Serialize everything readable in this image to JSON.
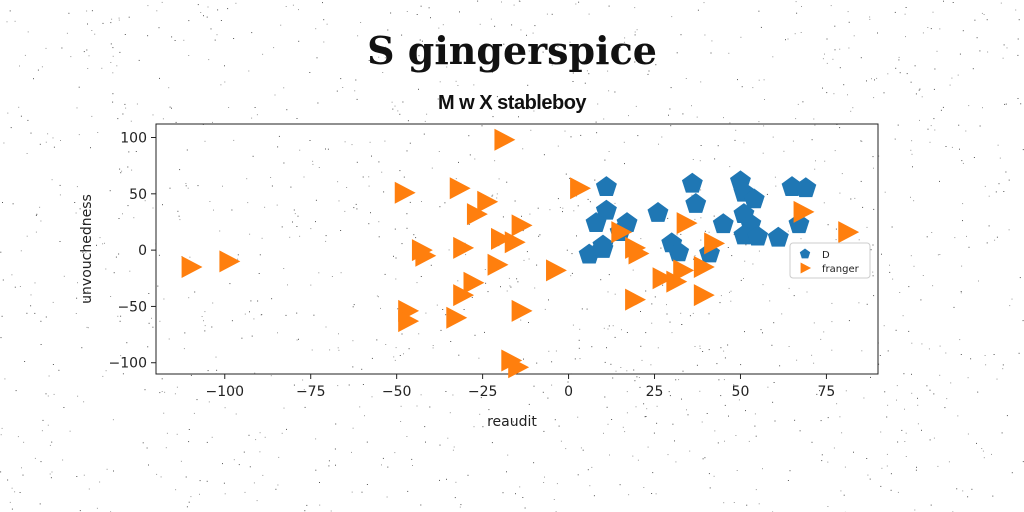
{
  "chart_data": {
    "type": "scatter",
    "title": "S gingerspice",
    "subtitle": "M w X stableboy",
    "xlabel": "reaudit",
    "ylabel": "unvouchedness",
    "xlim": [
      -120,
      90
    ],
    "ylim": [
      -110,
      112
    ],
    "xticks": [
      -100,
      -75,
      -50,
      -25,
      0,
      25,
      50,
      75
    ],
    "yticks": [
      -100,
      -50,
      0,
      50,
      100
    ],
    "grid": false,
    "legend_position": "right",
    "series": [
      {
        "name": "D",
        "marker": "pentagon",
        "color": "#1f77b4",
        "points": [
          [
            11,
            56
          ],
          [
            36,
            59
          ],
          [
            50,
            61
          ],
          [
            65,
            56
          ],
          [
            69,
            55
          ],
          [
            51,
            51
          ],
          [
            54,
            45
          ],
          [
            37,
            41
          ],
          [
            11,
            35
          ],
          [
            26,
            33
          ],
          [
            51,
            32
          ],
          [
            8,
            24
          ],
          [
            17,
            24
          ],
          [
            45,
            23
          ],
          [
            67,
            23
          ],
          [
            53,
            23
          ],
          [
            15,
            16
          ],
          [
            51,
            13
          ],
          [
            55,
            12
          ],
          [
            61,
            11
          ],
          [
            30,
            6
          ],
          [
            10,
            4
          ],
          [
            6,
            -4
          ],
          [
            10,
            1
          ],
          [
            32,
            -2
          ],
          [
            41,
            -3
          ]
        ]
      },
      {
        "name": "franger",
        "marker": "triangle-right",
        "color": "#ff7f0e",
        "points": [
          [
            -19,
            98
          ],
          [
            -48,
            51
          ],
          [
            -32,
            55
          ],
          [
            3,
            55
          ],
          [
            -24,
            43
          ],
          [
            -27,
            32
          ],
          [
            68,
            34
          ],
          [
            34,
            24
          ],
          [
            -14,
            22
          ],
          [
            81,
            16
          ],
          [
            15,
            16
          ],
          [
            -4,
            -18
          ],
          [
            -16,
            7
          ],
          [
            -20,
            10
          ],
          [
            -31,
            2
          ],
          [
            -43,
            0
          ],
          [
            -42,
            -5
          ],
          [
            19,
            2
          ],
          [
            42,
            6
          ],
          [
            20,
            -3
          ],
          [
            -21,
            -13
          ],
          [
            39,
            -15
          ],
          [
            -28,
            -29
          ],
          [
            -31,
            -40
          ],
          [
            27,
            -25
          ],
          [
            31,
            -28
          ],
          [
            33,
            -18
          ],
          [
            -110,
            -15
          ],
          [
            -99,
            -10
          ],
          [
            19,
            -44
          ],
          [
            39,
            -40
          ],
          [
            -47,
            -54
          ],
          [
            -47,
            -63
          ],
          [
            -33,
            -60
          ],
          [
            -14,
            -54
          ],
          [
            -17,
            -98
          ],
          [
            -15,
            -104
          ]
        ]
      }
    ]
  }
}
